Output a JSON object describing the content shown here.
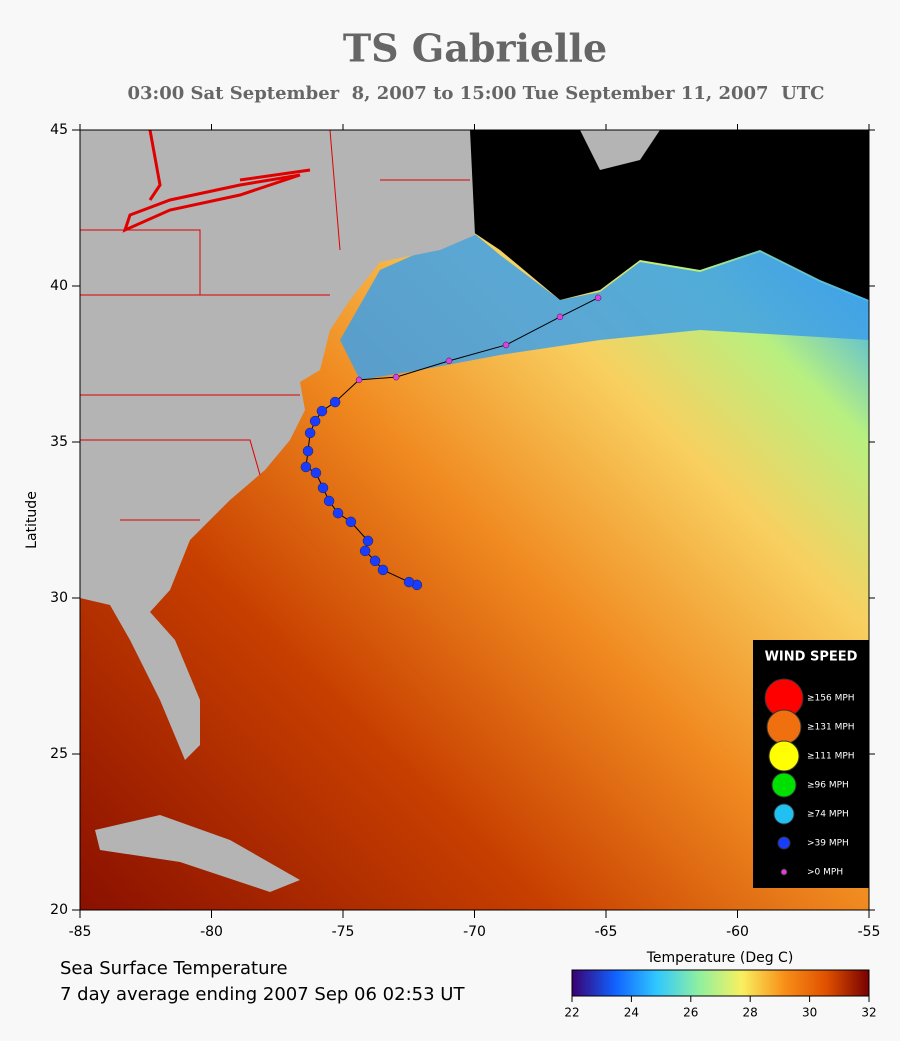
{
  "chart_data": {
    "type": "track-map",
    "title": "TS Gabrielle",
    "subtitle": "03:00 Sat September  8, 2007 to 15:00 Tue September 11, 2007  UTC",
    "ylabel": "Latitude",
    "xlim": [
      -85,
      -55
    ],
    "xticks": [
      -85,
      -80,
      -75,
      -70,
      -65,
      -60,
      -55
    ],
    "ylim": [
      20,
      45
    ],
    "yticks": [
      20,
      25,
      30,
      35,
      40,
      45
    ],
    "caption": [
      "Sea Surface Temperature",
      "7 day average ending 2007 Sep 06 02:53 UT"
    ],
    "colorbar": {
      "label": "Temperature (Deg C)",
      "lim": [
        22,
        32
      ],
      "ticks": [
        22,
        24,
        26,
        28,
        30,
        32
      ],
      "colors": [
        "#3a0070",
        "#1060ff",
        "#30c8ff",
        "#90f0a0",
        "#f8f060",
        "#f89018",
        "#e05000",
        "#780000"
      ]
    },
    "legend": {
      "title": "WIND SPEED",
      "entries": [
        {
          "label": "≥156 MPH",
          "color": "#ff0000"
        },
        {
          "label": "≥131 MPH",
          "color": "#f07010"
        },
        {
          "label": "≥111 MPH",
          "color": "#ffff00"
        },
        {
          "label": "≥96 MPH",
          "color": "#00e000"
        },
        {
          "label": "≥74 MPH",
          "color": "#20c0f0"
        },
        {
          "label": ">39 MPH",
          "color": "#1a3cff"
        },
        {
          "label": ">0 MPH",
          "color": "#e040e0"
        }
      ]
    },
    "track": {
      "lon": [
        -72.19,
        -72.49,
        -73.48,
        -73.78,
        -74.16,
        -74.05,
        -74.7,
        -75.19,
        -75.53,
        -75.76,
        -76.03,
        -76.41,
        -76.33,
        -76.25,
        -76.06,
        -75.8,
        -75.3,
        -74.39,
        -72.98,
        -70.97,
        -68.8,
        -66.75,
        -65.3
      ],
      "lat": [
        30.42,
        30.51,
        30.9,
        31.19,
        31.51,
        31.83,
        32.44,
        32.72,
        33.11,
        33.53,
        34.01,
        34.2,
        34.71,
        35.29,
        35.67,
        35.99,
        36.28,
        36.99,
        37.08,
        37.6,
        38.11,
        39.01,
        39.62
      ],
      "wind": [
        ">39 MPH",
        ">39 MPH",
        ">39 MPH",
        ">39 MPH",
        ">39 MPH",
        ">39 MPH",
        ">39 MPH",
        ">39 MPH",
        ">39 MPH",
        ">39 MPH",
        ">39 MPH",
        ">39 MPH",
        ">39 MPH",
        ">39 MPH",
        ">39 MPH",
        ">39 MPH",
        ">39 MPH",
        ">0 MPH",
        ">0 MPH",
        ">0 MPH",
        ">0 MPH",
        ">0 MPH",
        ">0 MPH"
      ]
    }
  }
}
